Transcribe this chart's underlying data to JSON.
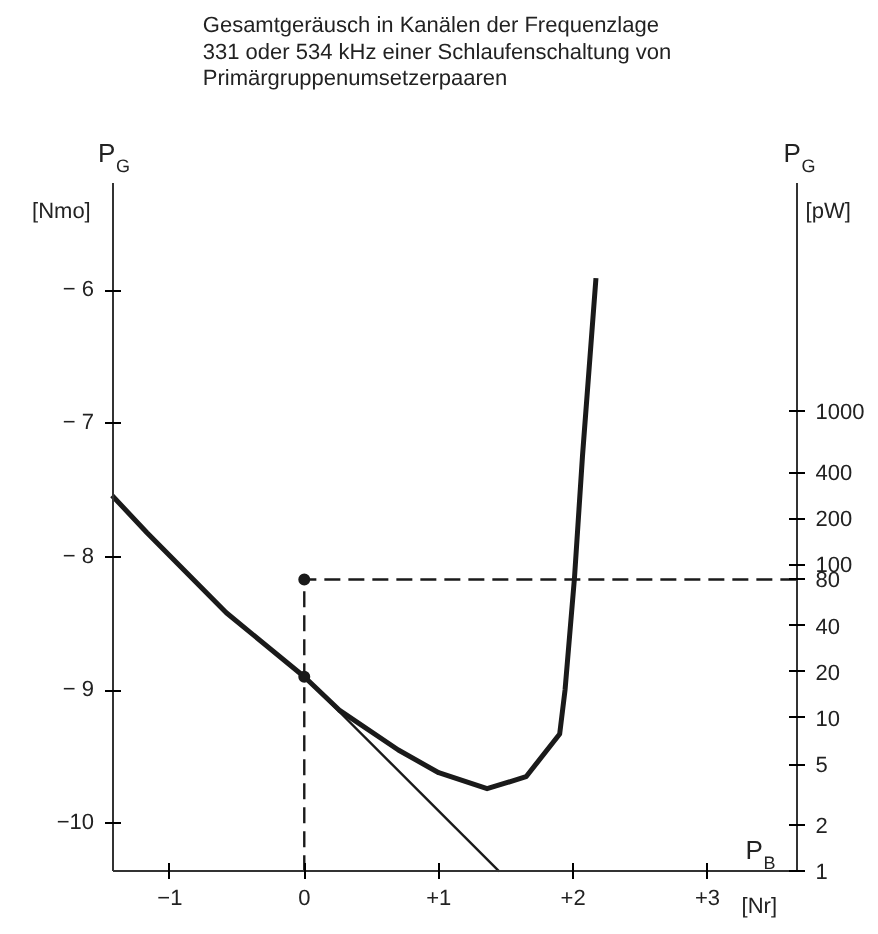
{
  "chart_data": {
    "type": "line",
    "title": "Gesamtgeräusch in Kanälen der Frequenzlage\n331 oder 534 kHz einer Schlaufenschaltung von\nPrimärgruppenumsetzerpaaren",
    "xlabel": "P$_{B}$ [Nr]",
    "ylabel": "P$_{G}$ [Nmo]",
    "y2label": "P$_{G}$ [pW]",
    "xlim": [
      -1.43,
      3.67
    ],
    "ylim": [
      -10.36,
      -5.2
    ],
    "y2lim": [
      1,
      30400
    ],
    "log": "y2",
    "xticks": [
      {
        "value": -1,
        "label": "−1"
      },
      0,
      {
        "value": 1,
        "label": "+1"
      },
      {
        "value": 2,
        "label": "+2"
      },
      {
        "value": 3,
        "label": "+3"
      }
    ],
    "yticks": [
      {
        "value": -10,
        "label": "−10"
      },
      {
        "value": -9,
        "label": "− 9"
      },
      {
        "value": -8,
        "label": "− 8"
      },
      {
        "value": -7,
        "label": "− 7"
      },
      {
        "value": -6,
        "label": "− 6"
      }
    ],
    "y2ticks": [
      1000,
      400,
      200,
      100,
      80,
      40,
      20,
      10,
      5,
      2,
      1
    ],
    "grid": false,
    "series": [
      {
        "color": "#1a1a1a",
        "line_style": "solid",
        "x": [
          -1.43,
          -1.17,
          -0.58,
          0,
          0.26,
          0.7,
          1.0,
          1.36,
          1.65,
          1.9,
          1.94,
          2.01,
          2.07,
          2.17
        ],
        "values": [
          -7.54,
          -7.82,
          -8.42,
          -8.9,
          -9.15,
          -9.45,
          -9.62,
          -9.74,
          -9.65,
          -9.33,
          -9.0,
          -8.16,
          -7.24,
          -5.91
        ]
      },
      {
        "color": "#1a1a1a",
        "line_style": "solid",
        "x": [
          0,
          1.45
        ],
        "values": [
          -8.9,
          -10.36
        ]
      },
      {
        "color": "#1a1a1a",
        "line_style": "dashed",
        "x": [
          0,
          0,
          3.67
        ],
        "values": [
          -10.36,
          -8.17,
          -8.17
        ]
      },
      {
        "type": "scatter",
        "color": "#1a1a1a",
        "marker": "circle",
        "x": [
          0,
          0
        ],
        "values": [
          -8.17,
          -8.9
        ]
      }
    ]
  }
}
